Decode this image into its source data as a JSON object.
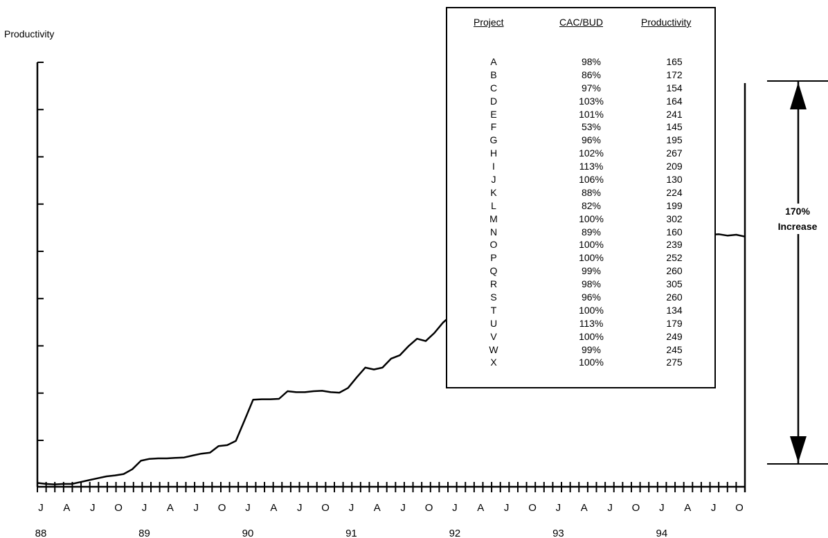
{
  "chart_data": {
    "type": "line",
    "ylabel": "Productivity",
    "x_month_labels": [
      "J",
      "A",
      "J",
      "O",
      "J",
      "A",
      "J",
      "O",
      "J",
      "A",
      "J",
      "O",
      "J",
      "A",
      "J",
      "O",
      "J",
      "A",
      "J",
      "O",
      "J",
      "A",
      "J",
      "O",
      "J",
      "A",
      "J",
      "O"
    ],
    "x_year_labels": [
      "88",
      "89",
      "90",
      "91",
      "92",
      "93",
      "94"
    ],
    "y_tick_count": 9,
    "x_tick_count": 82,
    "series": [
      {
        "values": [
          0.08,
          0.06,
          0.05,
          0.06,
          0.06,
          0.1,
          0.14,
          0.18,
          0.22,
          0.24,
          0.27,
          0.37,
          0.55,
          0.59,
          0.6,
          0.6,
          0.61,
          0.62,
          0.66,
          0.7,
          0.72,
          0.86,
          0.88,
          0.97,
          1.4,
          1.84,
          1.85,
          1.85,
          1.86,
          2.02,
          2.0,
          2.0,
          2.02,
          2.03,
          2.0,
          1.99,
          2.09,
          2.31,
          2.52,
          2.48,
          2.52,
          2.71,
          2.78,
          2.97,
          3.13,
          3.08,
          3.25,
          3.47,
          3.63,
          3.9,
          4.0,
          4.1,
          4.2,
          4.27,
          4.34,
          4.4,
          4.47,
          4.53,
          4.58,
          4.63,
          4.68,
          4.73,
          4.78,
          4.83,
          4.88,
          4.93,
          4.97,
          5.0,
          5.03,
          5.06,
          5.1,
          5.13,
          5.16,
          5.19,
          5.22,
          5.26,
          5.29,
          5.31,
          5.33,
          5.34,
          5.31,
          5.33,
          5.29
        ]
      }
    ],
    "marked_levels": [
      0.06,
      5.3
    ],
    "annotation": {
      "line1": "170%",
      "line2": "Increase"
    }
  },
  "table": {
    "headers": [
      "Project",
      "CAC/BUD",
      "Productivity"
    ],
    "rows": [
      [
        "A",
        "98%",
        "165"
      ],
      [
        "B",
        "86%",
        "172"
      ],
      [
        "C",
        "97%",
        "154"
      ],
      [
        "D",
        "103%",
        "164"
      ],
      [
        "E",
        "101%",
        "241"
      ],
      [
        "F",
        "53%",
        "145"
      ],
      [
        "G",
        "96%",
        "195"
      ],
      [
        "H",
        "102%",
        "267"
      ],
      [
        "I",
        "113%",
        "209"
      ],
      [
        "J",
        "106%",
        "130"
      ],
      [
        "K",
        "88%",
        "224"
      ],
      [
        "L",
        "82%",
        "199"
      ],
      [
        "M",
        "100%",
        "302"
      ],
      [
        "N",
        "89%",
        "160"
      ],
      [
        "O",
        "100%",
        "239"
      ],
      [
        "P",
        "100%",
        "252"
      ],
      [
        "Q",
        "99%",
        "260"
      ],
      [
        "R",
        "98%",
        "305"
      ],
      [
        "S",
        "96%",
        "260"
      ],
      [
        "T",
        "100%",
        "134"
      ],
      [
        "U",
        "113%",
        "179"
      ],
      [
        "V",
        "100%",
        "249"
      ],
      [
        "W",
        "99%",
        "245"
      ],
      [
        "X",
        "100%",
        "275"
      ]
    ]
  }
}
